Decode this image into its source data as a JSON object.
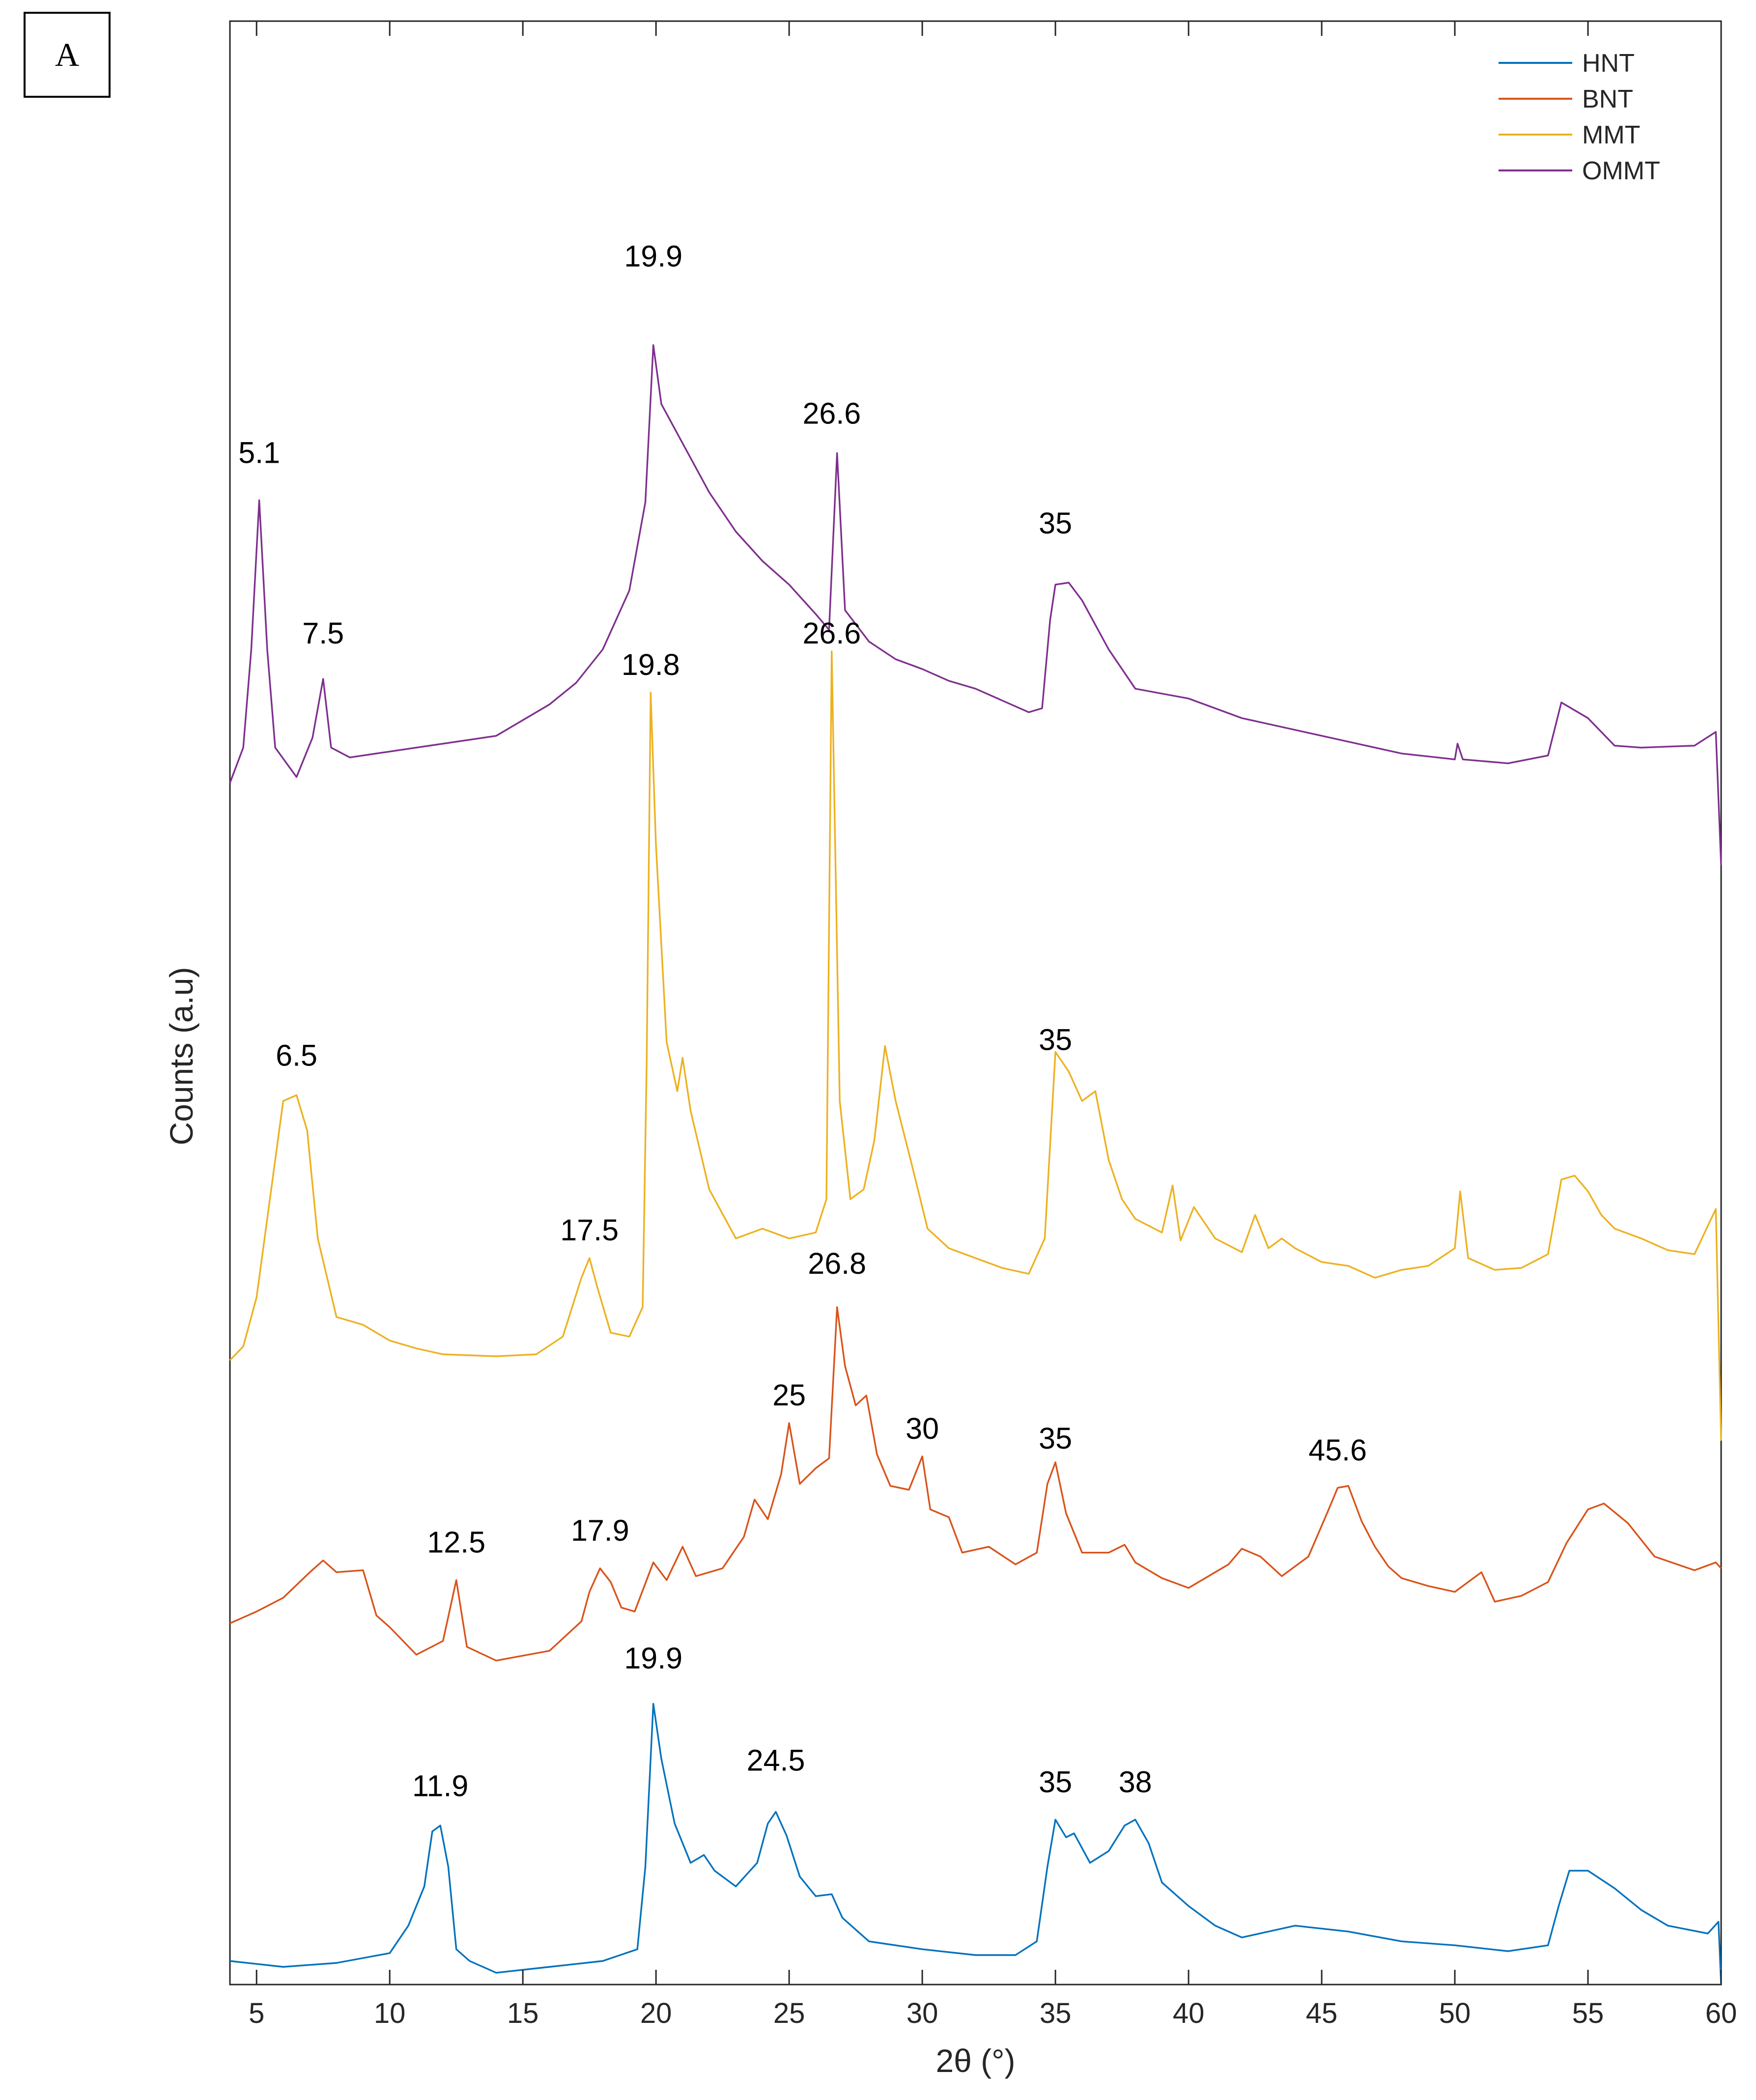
{
  "panel_label": "A",
  "chart_data": {
    "type": "line",
    "title": "",
    "xlabel": "2θ (°)",
    "ylabel": "Counts (a.u)",
    "xlim": [
      4,
      60
    ],
    "xticks": [
      5,
      10,
      15,
      20,
      25,
      30,
      35,
      40,
      45,
      50,
      55,
      60
    ],
    "xtick_labels": [
      "5",
      "10",
      "15",
      "20",
      "25",
      "30",
      "35",
      "40",
      "45",
      "50",
      "55",
      "60"
    ],
    "ylim": [
      0,
      100
    ],
    "yticks_shown": false,
    "grid": false,
    "legend_position": "top-right",
    "series": [
      {
        "name": "HNT",
        "color": "#0072BD",
        "points": [
          [
            4,
            1.2
          ],
          [
            6,
            0.9
          ],
          [
            8,
            1.1
          ],
          [
            10,
            1.6
          ],
          [
            10.7,
            3
          ],
          [
            11.3,
            5
          ],
          [
            11.6,
            7.8
          ],
          [
            11.9,
            8.1
          ],
          [
            12.2,
            6
          ],
          [
            12.5,
            1.8
          ],
          [
            13,
            1.2
          ],
          [
            14,
            0.6
          ],
          [
            16,
            0.9
          ],
          [
            18,
            1.2
          ],
          [
            19.3,
            1.8
          ],
          [
            19.6,
            6
          ],
          [
            19.9,
            14.3
          ],
          [
            20.2,
            11.5
          ],
          [
            20.7,
            8.2
          ],
          [
            21.3,
            6.2
          ],
          [
            21.8,
            6.6
          ],
          [
            22.2,
            5.8
          ],
          [
            23,
            5
          ],
          [
            23.8,
            6.2
          ],
          [
            24.2,
            8.2
          ],
          [
            24.5,
            8.8
          ],
          [
            24.9,
            7.6
          ],
          [
            25.4,
            5.5
          ],
          [
            26,
            4.5
          ],
          [
            26.6,
            4.6
          ],
          [
            27,
            3.4
          ],
          [
            28,
            2.2
          ],
          [
            30,
            1.8
          ],
          [
            32,
            1.5
          ],
          [
            33.5,
            1.5
          ],
          [
            34.3,
            2.2
          ],
          [
            34.7,
            6
          ],
          [
            35,
            8.4
          ],
          [
            35.4,
            7.5
          ],
          [
            35.7,
            7.7
          ],
          [
            36.3,
            6.2
          ],
          [
            37,
            6.8
          ],
          [
            37.6,
            8.1
          ],
          [
            38,
            8.4
          ],
          [
            38.5,
            7.2
          ],
          [
            39,
            5.2
          ],
          [
            40,
            4
          ],
          [
            41,
            3
          ],
          [
            42,
            2.4
          ],
          [
            44,
            3
          ],
          [
            46,
            2.7
          ],
          [
            48,
            2.2
          ],
          [
            50,
            2
          ],
          [
            52,
            1.7
          ],
          [
            53.5,
            2
          ],
          [
            53.9,
            4
          ],
          [
            54.3,
            5.8
          ],
          [
            55,
            5.8
          ],
          [
            56,
            4.9
          ],
          [
            57,
            3.8
          ],
          [
            58,
            3
          ],
          [
            59.5,
            2.6
          ],
          [
            59.9,
            3.2
          ],
          [
            60,
            0
          ]
        ]
      },
      {
        "name": "BNT",
        "color": "#D95319",
        "points": [
          [
            4,
            18.4
          ],
          [
            5,
            19
          ],
          [
            6,
            19.7
          ],
          [
            7,
            21
          ],
          [
            7.5,
            21.6
          ],
          [
            8,
            21
          ],
          [
            9,
            21.1
          ],
          [
            9.5,
            18.8
          ],
          [
            10,
            18.2
          ],
          [
            11,
            16.8
          ],
          [
            12,
            17.5
          ],
          [
            12.5,
            20.6
          ],
          [
            12.9,
            17.2
          ],
          [
            14,
            16.5
          ],
          [
            16,
            17
          ],
          [
            17.2,
            18.5
          ],
          [
            17.5,
            20
          ],
          [
            17.9,
            21.2
          ],
          [
            18.3,
            20.5
          ],
          [
            18.7,
            19.2
          ],
          [
            19.2,
            19
          ],
          [
            19.9,
            21.5
          ],
          [
            20.4,
            20.6
          ],
          [
            21,
            22.3
          ],
          [
            21.5,
            20.8
          ],
          [
            22.5,
            21.2
          ],
          [
            23.3,
            22.8
          ],
          [
            23.7,
            24.7
          ],
          [
            24.2,
            23.7
          ],
          [
            24.7,
            26
          ],
          [
            25,
            28.6
          ],
          [
            25.4,
            25.5
          ],
          [
            26,
            26.3
          ],
          [
            26.5,
            26.8
          ],
          [
            26.8,
            34.5
          ],
          [
            27.1,
            31.5
          ],
          [
            27.5,
            29.5
          ],
          [
            27.9,
            30
          ],
          [
            28.3,
            27
          ],
          [
            28.8,
            25.4
          ],
          [
            29.5,
            25.2
          ],
          [
            30,
            26.9
          ],
          [
            30.3,
            24.2
          ],
          [
            31,
            23.8
          ],
          [
            31.5,
            22
          ],
          [
            32.5,
            22.3
          ],
          [
            33.5,
            21.4
          ],
          [
            34.3,
            22
          ],
          [
            34.7,
            25.5
          ],
          [
            35,
            26.6
          ],
          [
            35.4,
            24
          ],
          [
            36,
            22
          ],
          [
            37,
            22
          ],
          [
            37.6,
            22.4
          ],
          [
            38,
            21.5
          ],
          [
            39,
            20.7
          ],
          [
            40,
            20.2
          ],
          [
            41.5,
            21.4
          ],
          [
            42,
            22.2
          ],
          [
            42.7,
            21.8
          ],
          [
            43.5,
            20.8
          ],
          [
            44.5,
            21.8
          ],
          [
            45.2,
            24
          ],
          [
            45.6,
            25.3
          ],
          [
            46,
            25.4
          ],
          [
            46.5,
            23.6
          ],
          [
            47,
            22.3
          ],
          [
            47.5,
            21.3
          ],
          [
            48,
            20.7
          ],
          [
            49,
            20.3
          ],
          [
            50,
            20
          ],
          [
            51,
            21
          ],
          [
            51.5,
            19.5
          ],
          [
            52.5,
            19.8
          ],
          [
            53.5,
            20.5
          ],
          [
            54.2,
            22.5
          ],
          [
            55,
            24.2
          ],
          [
            55.6,
            24.5
          ],
          [
            56.5,
            23.5
          ],
          [
            57.5,
            21.8
          ],
          [
            59,
            21.1
          ],
          [
            59.8,
            21.5
          ],
          [
            60,
            21.2
          ]
        ]
      },
      {
        "name": "MMT",
        "color": "#EDB120",
        "points": [
          [
            4,
            31.8
          ],
          [
            4.5,
            32.5
          ],
          [
            5,
            35
          ],
          [
            5.5,
            40
          ],
          [
            6,
            45
          ],
          [
            6.5,
            45.3
          ],
          [
            6.9,
            43.5
          ],
          [
            7.3,
            38
          ],
          [
            8,
            34
          ],
          [
            8.5,
            33.8
          ],
          [
            9,
            33.6
          ],
          [
            10,
            32.8
          ],
          [
            11,
            32.4
          ],
          [
            12,
            32.1
          ],
          [
            14,
            32
          ],
          [
            15.5,
            32.1
          ],
          [
            16.5,
            33
          ],
          [
            17.2,
            36
          ],
          [
            17.5,
            37
          ],
          [
            17.8,
            35.5
          ],
          [
            18.3,
            33.2
          ],
          [
            19,
            33
          ],
          [
            19.5,
            34.5
          ],
          [
            19.65,
            47
          ],
          [
            19.8,
            65.8
          ],
          [
            20,
            58
          ],
          [
            20.4,
            48
          ],
          [
            20.8,
            45.5
          ],
          [
            21,
            47.2
          ],
          [
            21.3,
            44.5
          ],
          [
            22,
            40.5
          ],
          [
            23,
            38
          ],
          [
            24,
            38.5
          ],
          [
            25,
            38
          ],
          [
            26,
            38.3
          ],
          [
            26.4,
            40
          ],
          [
            26.6,
            67.9
          ],
          [
            26.9,
            45
          ],
          [
            27.3,
            40
          ],
          [
            27.8,
            40.5
          ],
          [
            28.2,
            43
          ],
          [
            28.6,
            47.8
          ],
          [
            29,
            45
          ],
          [
            29.6,
            41.8
          ],
          [
            30.2,
            38.5
          ],
          [
            31,
            37.5
          ],
          [
            32,
            37
          ],
          [
            33,
            36.5
          ],
          [
            34,
            36.2
          ],
          [
            34.6,
            38
          ],
          [
            35,
            47.5
          ],
          [
            35.5,
            46.5
          ],
          [
            36,
            45
          ],
          [
            36.5,
            45.5
          ],
          [
            37,
            42
          ],
          [
            37.5,
            40
          ],
          [
            38,
            39
          ],
          [
            39,
            38.3
          ],
          [
            39.4,
            40.7
          ],
          [
            39.7,
            37.9
          ],
          [
            40.2,
            39.6
          ],
          [
            41,
            38
          ],
          [
            42,
            37.3
          ],
          [
            42.5,
            39.2
          ],
          [
            43,
            37.5
          ],
          [
            43.5,
            38
          ],
          [
            44,
            37.5
          ],
          [
            45,
            36.8
          ],
          [
            46,
            36.6
          ],
          [
            47,
            36
          ],
          [
            48,
            36.4
          ],
          [
            49,
            36.6
          ],
          [
            50,
            37.5
          ],
          [
            50.2,
            40.4
          ],
          [
            50.5,
            37
          ],
          [
            51.5,
            36.4
          ],
          [
            52.5,
            36.5
          ],
          [
            53.5,
            37.2
          ],
          [
            54,
            41
          ],
          [
            54.5,
            41.2
          ],
          [
            55,
            40.4
          ],
          [
            55.5,
            39.2
          ],
          [
            56,
            38.5
          ],
          [
            57,
            38
          ],
          [
            58,
            37.4
          ],
          [
            59,
            37.2
          ],
          [
            59.8,
            39.5
          ],
          [
            60,
            27.7
          ]
        ]
      },
      {
        "name": "OMMT",
        "color": "#7E2F8E",
        "points": [
          [
            4,
            61.2
          ],
          [
            4.5,
            63
          ],
          [
            4.8,
            68
          ],
          [
            5.1,
            75.6
          ],
          [
            5.4,
            68
          ],
          [
            5.7,
            63
          ],
          [
            6.5,
            61.5
          ],
          [
            7.1,
            63.5
          ],
          [
            7.5,
            66.5
          ],
          [
            7.8,
            63
          ],
          [
            8.5,
            62.5
          ],
          [
            10,
            62.8
          ],
          [
            12,
            63.2
          ],
          [
            14,
            63.6
          ],
          [
            16,
            65.2
          ],
          [
            17,
            66.3
          ],
          [
            18,
            68
          ],
          [
            19,
            71
          ],
          [
            19.6,
            75.5
          ],
          [
            19.9,
            83.5
          ],
          [
            20.2,
            80.5
          ],
          [
            21,
            78.5
          ],
          [
            22,
            76
          ],
          [
            23,
            74
          ],
          [
            24,
            72.5
          ],
          [
            25,
            71.3
          ],
          [
            26,
            69.8
          ],
          [
            26.5,
            69
          ],
          [
            26.8,
            78
          ],
          [
            27.1,
            70
          ],
          [
            28,
            68.4
          ],
          [
            29,
            67.5
          ],
          [
            30,
            67
          ],
          [
            31,
            66.4
          ],
          [
            32,
            66
          ],
          [
            33,
            65.4
          ],
          [
            34,
            64.8
          ],
          [
            34.5,
            65
          ],
          [
            34.8,
            69.5
          ],
          [
            35,
            71.3
          ],
          [
            35.5,
            71.4
          ],
          [
            36,
            70.5
          ],
          [
            37,
            68
          ],
          [
            38,
            66
          ],
          [
            40,
            65.5
          ],
          [
            42,
            64.5
          ],
          [
            44,
            63.9
          ],
          [
            46,
            63.3
          ],
          [
            48,
            62.7
          ],
          [
            50,
            62.4
          ],
          [
            50.1,
            63.2
          ],
          [
            50.3,
            62.4
          ],
          [
            52,
            62.2
          ],
          [
            53.5,
            62.6
          ],
          [
            54,
            65.3
          ],
          [
            55,
            64.5
          ],
          [
            56,
            63.1
          ],
          [
            57,
            63
          ],
          [
            59,
            63.1
          ],
          [
            59.8,
            63.8
          ],
          [
            60,
            57
          ]
        ]
      }
    ],
    "annotations": [
      {
        "text": "5.1",
        "x": 5.1,
        "y": 77.5
      },
      {
        "text": "7.5",
        "x": 7.5,
        "y": 68.3
      },
      {
        "text": "19.9",
        "x": 19.9,
        "y": 87.5
      },
      {
        "text": "26.6",
        "x": 26.6,
        "y": 79.5
      },
      {
        "text": "35",
        "x": 35,
        "y": 73.9
      },
      {
        "text": "19.8",
        "x": 19.8,
        "y": 66.7
      },
      {
        "text": "26.6",
        "x": 26.6,
        "y": 68.3
      },
      {
        "text": "6.5",
        "x": 6.5,
        "y": 46.8
      },
      {
        "text": "35",
        "x": 35,
        "y": 47.6
      },
      {
        "text": "17.5",
        "x": 17.5,
        "y": 37.9
      },
      {
        "text": "26.8",
        "x": 26.8,
        "y": 36.2
      },
      {
        "text": "25",
        "x": 25,
        "y": 29.5
      },
      {
        "text": "30",
        "x": 30,
        "y": 27.8
      },
      {
        "text": "35",
        "x": 35,
        "y": 27.3
      },
      {
        "text": "45.6",
        "x": 45.6,
        "y": 26.7
      },
      {
        "text": "12.5",
        "x": 12.5,
        "y": 22
      },
      {
        "text": "17.9",
        "x": 17.9,
        "y": 22.6
      },
      {
        "text": "19.9",
        "x": 19.9,
        "y": 16.1
      },
      {
        "text": "24.5",
        "x": 24.5,
        "y": 10.9
      },
      {
        "text": "11.9",
        "x": 11.9,
        "y": 9.6
      },
      {
        "text": "35",
        "x": 35,
        "y": 9.8
      },
      {
        "text": "38",
        "x": 38,
        "y": 9.8
      }
    ]
  }
}
